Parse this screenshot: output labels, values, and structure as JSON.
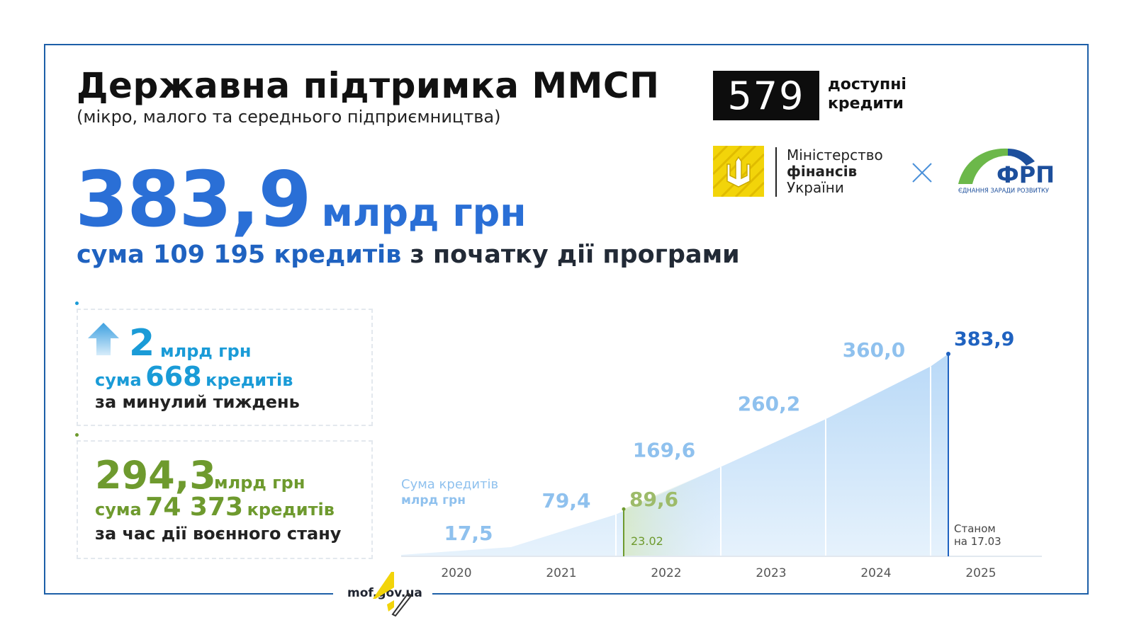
{
  "header": {
    "title": "Державна підтримка ММСП",
    "subtitle": "(мікро, малого та середнього підприємництва)"
  },
  "headline": {
    "value": "383,9",
    "unit": "млрд грн",
    "sum_prefix": "сума",
    "loans_count": "109 195",
    "loans_word": "кредитів",
    "sum_suffix": "з початку дії програми"
  },
  "logos": {
    "program_number": "579",
    "program_text_line1": "доступні",
    "program_text_line2": "кредити",
    "ministry_line1": "Міністерство",
    "ministry_line2": "фінансів",
    "ministry_line3": "України",
    "frp_name": "ФРП",
    "frp_tagline": "ЄДНАННЯ ЗАРАДИ РОЗВИТКУ"
  },
  "weekly": {
    "value": "2",
    "unit": "млрд грн",
    "sum_prefix": "сума",
    "loans_count": "668",
    "loans_word": "кредитів",
    "period": "за минулий тиждень"
  },
  "war": {
    "value": "294,3",
    "unit": "млрд грн",
    "sum_prefix": "сума",
    "loans_count": "74 373",
    "loans_word": "кредитів",
    "period": "за час дії воєнного стану"
  },
  "footer": {
    "site": "mof.gov.ua"
  },
  "colors": {
    "primary_blue": "#2a6fd6",
    "light_blue": "#8fc1ee",
    "weekly_blue": "#1a9bd7",
    "war_green": "#6e9a2e",
    "frame_blue": "#1d5fa8"
  },
  "chart_data": {
    "type": "area",
    "ylabel_line1": "Сума кредитів",
    "ylabel_line2": "млрд грн",
    "categories": [
      "2020",
      "2021",
      "2022",
      "2023",
      "2024",
      "2025"
    ],
    "year_end_values": [
      {
        "label": "17,5",
        "value": 17.5
      },
      {
        "label": "79,4",
        "value": 79.4
      },
      {
        "label": "169,6",
        "value": 169.6
      },
      {
        "label": "260,2",
        "value": 260.2
      },
      {
        "label": "360,0",
        "value": 360.0
      }
    ],
    "war_start": {
      "date": "23.02",
      "label": "89,6",
      "value": 89.6
    },
    "current": {
      "label": "383,9",
      "value": 383.9,
      "note_line1": "Станом",
      "note_line2": "на 17.03"
    }
  }
}
